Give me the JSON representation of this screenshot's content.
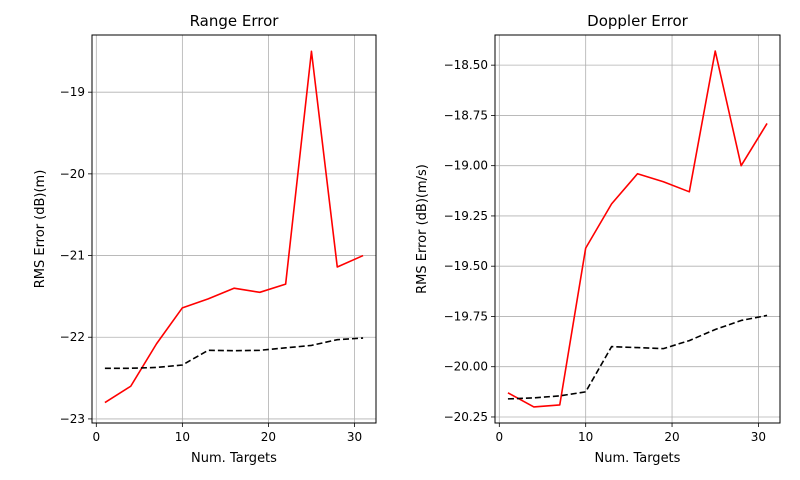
{
  "figure": {
    "background": "#ffffff"
  },
  "chart_data": [
    {
      "id": "range",
      "type": "line",
      "title": "Range Error",
      "xlabel": "Num. Targets",
      "ylabel": "RMS Error (dB)(m)",
      "xlim": [
        -0.5,
        32.5
      ],
      "ylim": [
        -23.05,
        -18.3
      ],
      "xticks": [
        0,
        10,
        20,
        30
      ],
      "xtick_labels": [
        "0",
        "10",
        "20",
        "30"
      ],
      "yticks": [
        -23,
        -22,
        -21,
        -20,
        -19
      ],
      "ytick_labels": [
        "−23",
        "−22",
        "−21",
        "−20",
        "−19"
      ],
      "grid": true,
      "series": [
        {
          "color": "#ff0000",
          "dash": "solid",
          "x": [
            1,
            4,
            7,
            10,
            13,
            16,
            19,
            22,
            25,
            28,
            31
          ],
          "y": [
            -22.8,
            -22.6,
            -22.08,
            -21.64,
            -21.53,
            -21.4,
            -21.45,
            -21.35,
            -18.5,
            -21.14,
            -21.0
          ]
        },
        {
          "color": "#000000",
          "dash": "dashed",
          "x": [
            1,
            4,
            7,
            10,
            13,
            16,
            19,
            22,
            25,
            28,
            31
          ],
          "y": [
            -22.38,
            -22.38,
            -22.37,
            -22.34,
            -22.16,
            -22.165,
            -22.16,
            -22.13,
            -22.1,
            -22.03,
            -22.01
          ]
        }
      ]
    },
    {
      "id": "doppler",
      "type": "line",
      "title": "Doppler Error",
      "xlabel": "Num. Targets",
      "ylabel": "RMS Error (dB)(m/s)",
      "xlim": [
        -0.5,
        32.5
      ],
      "ylim": [
        -20.28,
        -18.35
      ],
      "xticks": [
        0,
        10,
        20,
        30
      ],
      "xtick_labels": [
        "0",
        "10",
        "20",
        "30"
      ],
      "yticks": [
        -20.25,
        -20.0,
        -19.75,
        -19.5,
        -19.25,
        -19.0,
        -18.75,
        -18.5
      ],
      "ytick_labels": [
        "−20.25",
        "−20.00",
        "−19.75",
        "−19.50",
        "−19.25",
        "−19.00",
        "−18.75",
        "−18.50"
      ],
      "grid": true,
      "series": [
        {
          "color": "#ff0000",
          "dash": "solid",
          "x": [
            1,
            4,
            7,
            10,
            13,
            16,
            19,
            22,
            25,
            28,
            31
          ],
          "y": [
            -20.13,
            -20.2,
            -20.19,
            -19.41,
            -19.19,
            -19.04,
            -19.08,
            -19.13,
            -18.43,
            -19.0,
            -18.79
          ]
        },
        {
          "color": "#000000",
          "dash": "dashed",
          "x": [
            1,
            4,
            7,
            10,
            13,
            16,
            19,
            22,
            25,
            28,
            31
          ],
          "y": [
            -20.16,
            -20.155,
            -20.145,
            -20.125,
            -19.9,
            -19.905,
            -19.91,
            -19.87,
            -19.815,
            -19.77,
            -19.745
          ]
        }
      ]
    }
  ]
}
